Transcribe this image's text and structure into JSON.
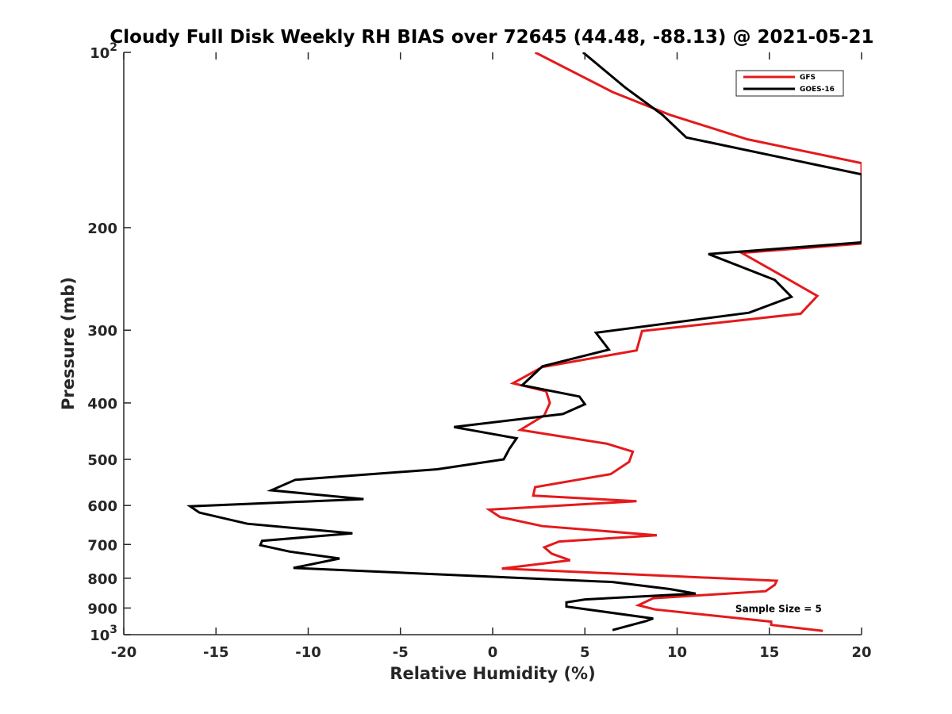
{
  "chart_data": {
    "type": "line",
    "title": "Cloudy Full Disk Weekly RH BIAS over 72645 (44.48, -88.13) @ 2021-05-21",
    "xlabel": "Relative Humidity (%)",
    "ylabel": "Pressure (mb)",
    "xlim": [
      -20,
      20
    ],
    "ylim": [
      100,
      1000
    ],
    "y_scale": "log",
    "y_reversed": true,
    "grid": false,
    "legend_position": "top-right",
    "x_ticks": [
      -20,
      -15,
      -10,
      -5,
      0,
      5,
      10,
      15,
      20
    ],
    "x_tick_labels": [
      "-20",
      "-15",
      "-10",
      "-5",
      "0",
      "5",
      "10",
      "15",
      "20"
    ],
    "y_ticks": [
      100,
      200,
      300,
      400,
      500,
      600,
      700,
      800,
      900,
      1000
    ],
    "y_tick_labels": [
      {
        "base": "10",
        "exp": "2"
      },
      {
        "base": "200",
        "exp": ""
      },
      {
        "base": "300",
        "exp": ""
      },
      {
        "base": "400",
        "exp": ""
      },
      {
        "base": "500",
        "exp": ""
      },
      {
        "base": "600",
        "exp": ""
      },
      {
        "base": "700",
        "exp": ""
      },
      {
        "base": "800",
        "exp": ""
      },
      {
        "base": "900",
        "exp": ""
      },
      {
        "base": "10",
        "exp": "3"
      }
    ],
    "annotations": [
      {
        "text": "Sample Size = 5",
        "x": 15.5,
        "y": 900
      }
    ],
    "series": [
      {
        "name": "GFS",
        "color": "#e41a1c",
        "points": [
          [
            2.3,
            100
          ],
          [
            6.5,
            117
          ],
          [
            9.6,
            128
          ],
          [
            13.8,
            141
          ],
          [
            20.0,
            155
          ],
          [
            20.0,
            213
          ],
          [
            13.5,
            221
          ],
          [
            15.5,
            240
          ],
          [
            17.6,
            262
          ],
          [
            16.7,
            281
          ],
          [
            8.1,
            301
          ],
          [
            7.8,
            325
          ],
          [
            2.7,
            347
          ],
          [
            1.1,
            370
          ],
          [
            2.9,
            382
          ],
          [
            3.1,
            400
          ],
          [
            2.8,
            420
          ],
          [
            1.5,
            445
          ],
          [
            6.2,
            470
          ],
          [
            7.6,
            485
          ],
          [
            7.4,
            505
          ],
          [
            6.4,
            530
          ],
          [
            2.3,
            558
          ],
          [
            2.2,
            577
          ],
          [
            7.8,
            590
          ],
          [
            -0.2,
            610
          ],
          [
            0.4,
            628
          ],
          [
            2.7,
            651
          ],
          [
            8.9,
            675
          ],
          [
            3.6,
            692
          ],
          [
            2.8,
            708
          ],
          [
            3.2,
            726
          ],
          [
            4.2,
            745
          ],
          [
            0.5,
            770
          ],
          [
            15.4,
            808
          ],
          [
            15.3,
            821
          ],
          [
            14.8,
            842
          ],
          [
            8.7,
            866
          ],
          [
            7.9,
            890
          ],
          [
            8.8,
            905
          ],
          [
            15.1,
            950
          ],
          [
            15.1,
            962
          ],
          [
            17.9,
            985
          ]
        ]
      },
      {
        "name": "GOES-16",
        "color": "#000000",
        "points": [
          [
            4.9,
            100
          ],
          [
            7.2,
            115
          ],
          [
            9.2,
            128
          ],
          [
            10.5,
            140
          ],
          [
            20.0,
            162
          ],
          [
            20.0,
            212
          ],
          [
            11.7,
            222
          ],
          [
            15.3,
            246
          ],
          [
            16.2,
            263
          ],
          [
            13.9,
            280
          ],
          [
            5.6,
            303
          ],
          [
            6.3,
            324
          ],
          [
            2.7,
            346
          ],
          [
            1.6,
            373
          ],
          [
            4.7,
            390
          ],
          [
            5.0,
            402
          ],
          [
            3.8,
            418
          ],
          [
            -2.1,
            440
          ],
          [
            1.3,
            460
          ],
          [
            0.9,
            480
          ],
          [
            0.6,
            500
          ],
          [
            -3.0,
            520
          ],
          [
            -10.7,
            542
          ],
          [
            -12.0,
            565
          ],
          [
            -7.0,
            585
          ],
          [
            -16.4,
            602
          ],
          [
            -15.9,
            617
          ],
          [
            -13.3,
            645
          ],
          [
            -7.6,
            670
          ],
          [
            -12.5,
            690
          ],
          [
            -12.6,
            702
          ],
          [
            -11.0,
            720
          ],
          [
            -8.3,
            740
          ],
          [
            -10.8,
            768
          ],
          [
            6.5,
            812
          ],
          [
            9.6,
            835
          ],
          [
            11.0,
            850
          ],
          [
            5.0,
            870
          ],
          [
            4.0,
            880
          ],
          [
            4.0,
            895
          ],
          [
            8.7,
            938
          ],
          [
            8.3,
            948
          ],
          [
            6.5,
            982
          ]
        ]
      }
    ]
  }
}
